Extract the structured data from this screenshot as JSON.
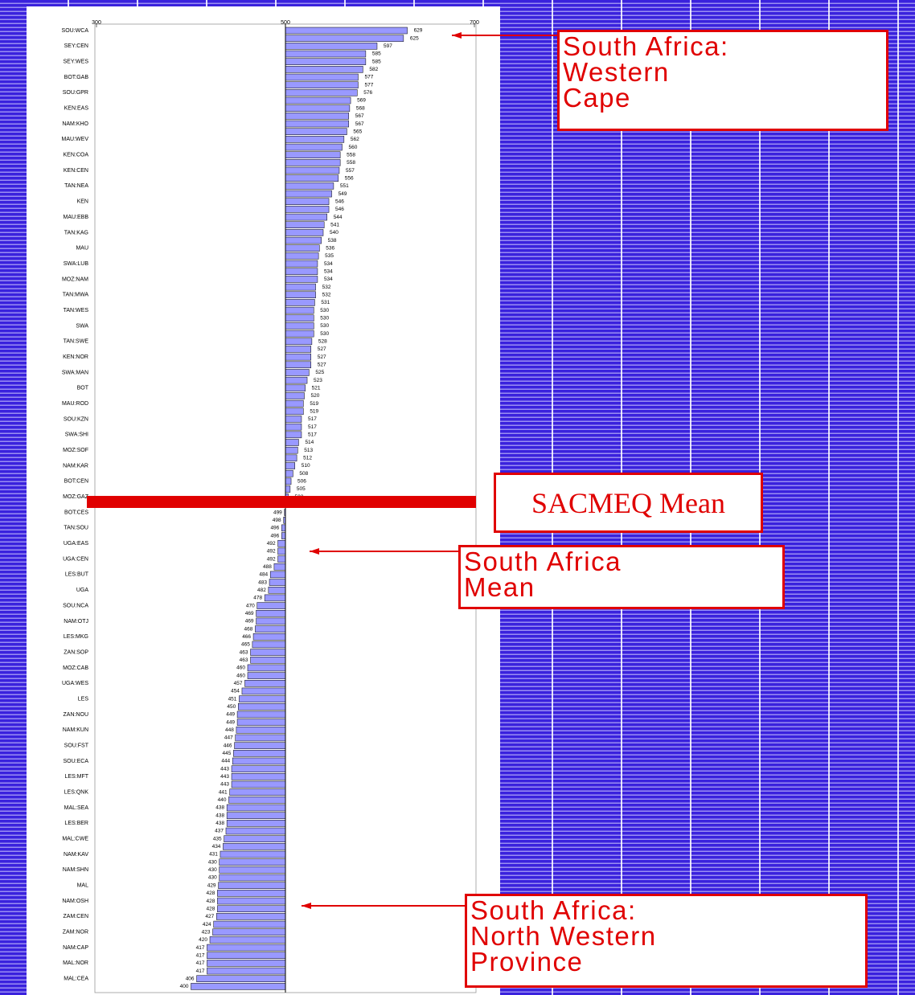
{
  "chart_data": {
    "type": "bar",
    "orientation": "horizontal",
    "categories": [
      "SOU:WCA",
      null,
      "SEY:CEN",
      null,
      "SEY:WES",
      null,
      "BOT:GAB",
      null,
      "SOU:GPR",
      null,
      "KEN:EAS",
      null,
      "NAM:KHO",
      null,
      "MAU:WEV",
      null,
      "KEN:COA",
      null,
      "KEN:CEN",
      null,
      "TAN:NEA",
      null,
      "KEN",
      null,
      "MAU:EBB",
      null,
      "TAN:KAG",
      null,
      "MAU",
      null,
      "SWA:LUB",
      null,
      "MOZ:NAM",
      null,
      "TAN:MWA",
      null,
      "TAN:WES",
      null,
      "SWA",
      null,
      "TAN:SWE",
      null,
      "KEN:NOR",
      null,
      "SWA:MAN",
      null,
      "BOT",
      null,
      "MAU:ROD",
      null,
      "SOU:KZN",
      null,
      "SWA:SHI",
      null,
      "MOZ:SOF",
      null,
      "NAM:KAR",
      null,
      "BOT:CEN",
      null,
      "MOZ:GAZ",
      null,
      "BOT:CES",
      null,
      "TAN:SOU",
      null,
      "UGA:EAS",
      null,
      "UGA:CEN",
      null,
      "LES:BUT",
      null,
      "UGA",
      null,
      "SOU:NCA",
      null,
      "NAM:OTJ",
      null,
      "LES:MKG",
      null,
      "ZAN:SOP",
      null,
      "MOZ:CAB",
      null,
      "UGA:WES",
      null,
      "LES",
      null,
      "ZAN:NOU",
      null,
      "NAM:KUN",
      null,
      "SOU:FST",
      null,
      "SOU:ECA",
      null,
      "LES:MFT",
      null,
      "LES:QNK",
      null,
      "MAL:SEA",
      null,
      "LES:BER",
      null,
      "MAL:CWE",
      null,
      "NAM:KAV",
      null,
      "NAM:SHN",
      null,
      "MAL",
      null,
      "NAM:OSH",
      null,
      "ZAM:CEN",
      null,
      "ZAM:NOR",
      null,
      "NAM:CAP",
      null,
      "MAL:NOR",
      null,
      "MAL:CEA",
      null
    ],
    "values": [
      629,
      625,
      597,
      585,
      585,
      582,
      577,
      577,
      576,
      569,
      568,
      567,
      567,
      565,
      562,
      560,
      558,
      558,
      557,
      556,
      551,
      549,
      546,
      546,
      544,
      541,
      540,
      538,
      536,
      535,
      534,
      534,
      534,
      532,
      532,
      531,
      530,
      530,
      530,
      530,
      528,
      527,
      527,
      527,
      525,
      523,
      521,
      520,
      519,
      519,
      517,
      517,
      517,
      514,
      513,
      512,
      510,
      508,
      506,
      505,
      503,
      500,
      499,
      498,
      496,
      496,
      492,
      492,
      492,
      488,
      484,
      483,
      482,
      478,
      470,
      469,
      469,
      468,
      466,
      465,
      463,
      463,
      460,
      460,
      457,
      454,
      451,
      450,
      449,
      449,
      448,
      447,
      446,
      445,
      444,
      443,
      443,
      443,
      441,
      440,
      438,
      438,
      438,
      437,
      435,
      434,
      431,
      430,
      430,
      430,
      429,
      428,
      428,
      428,
      427,
      424,
      423,
      420,
      417,
      417,
      417,
      417,
      406,
      400
    ],
    "color": "#9999ff",
    "baseline": 500,
    "xlim": [
      300,
      700
    ],
    "xticks": [
      300,
      500,
      700
    ],
    "annotations": [
      "South Africa:\nWestern\nCape",
      "SACMEQ Mean",
      "South Africa\nMean",
      "South Africa:\nNorth Western\nProvince"
    ]
  }
}
